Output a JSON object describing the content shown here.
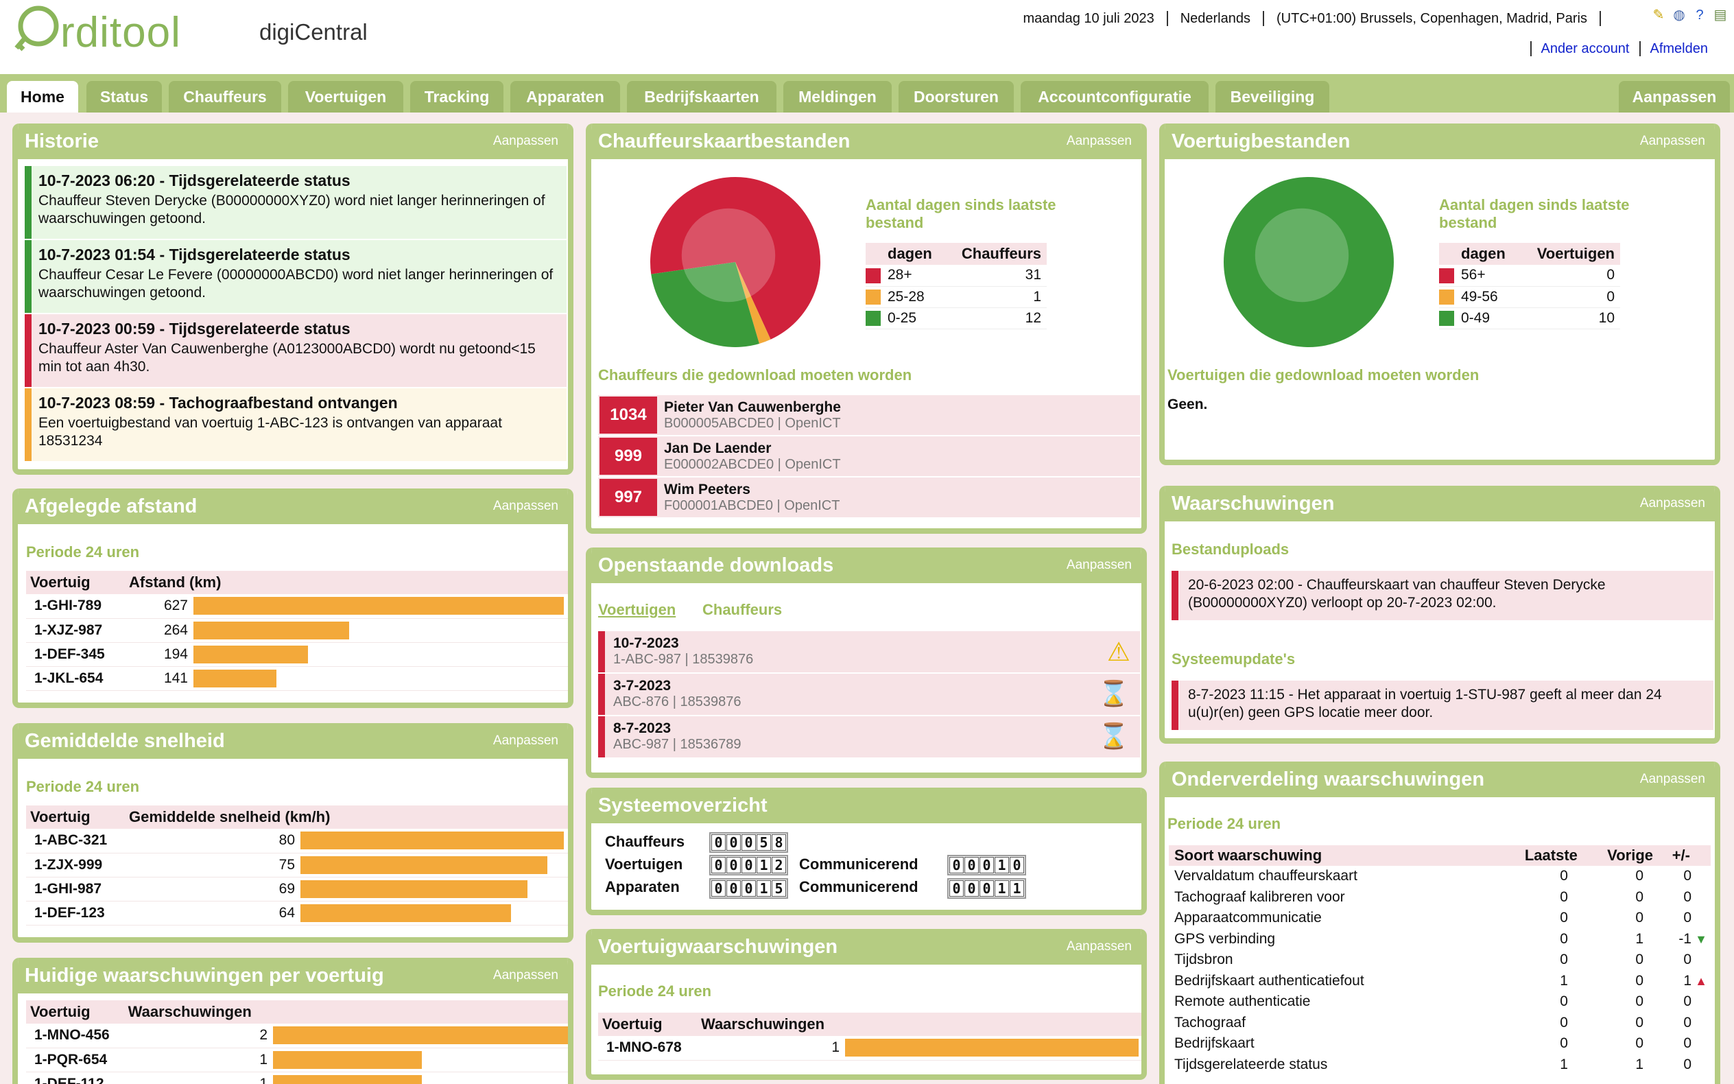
{
  "header": {
    "logo": "rditool",
    "app_name": "digiCentral",
    "date": "maandag 10 juli 2023",
    "language": "Nederlands",
    "timezone": "(UTC+01:00) Brussels, Copenhagen, Madrid, Paris",
    "links": {
      "other_account": "Ander account",
      "logout": "Afmelden"
    },
    "icons": [
      "help-balloon-icon",
      "globe-icon",
      "question-icon",
      "document-icon"
    ]
  },
  "tabs": [
    "Home",
    "Status",
    "Chauffeurs",
    "Voertuigen",
    "Tracking",
    "Apparaten",
    "Bedrijfskaarten",
    "Meldingen",
    "Doorsturen",
    "Accountconfiguratie",
    "Beveiliging"
  ],
  "tab_right": "Aanpassen",
  "adjust": "Aanpassen",
  "historie": {
    "title": "Historie",
    "items": [
      {
        "title": "10-7-2023 06:20 - Tijdsgerelateerde status",
        "text": "Chauffeur  Steven Derycke (B00000000XYZ0)  word niet langer herinneringen of waarschuwingen getoond.",
        "status": "green"
      },
      {
        "title": "10-7-2023 01:54 - Tijdsgerelateerde status",
        "text": "Chauffeur  Cesar Le Fevere (00000000ABCD0)        word niet langer herinneringen of waarschuwingen getoond.",
        "status": "green"
      },
      {
        "title": "10-7-2023 00:59 - Tijdsgerelateerde status",
        "text": "Chauffeur  Aster Van Cauwenberghe (A0123000ABCD0)   wordt nu getoond<15 min tot aan 4h30.",
        "status": "red"
      },
      {
        "title": "10-7-2023 08:59 - Tachograafbestand ontvangen",
        "text": "Een voertuigbestand van voertuig  1-ABC-123  is ontvangen van apparaat  18531234",
        "status": "yellow"
      }
    ]
  },
  "afstand": {
    "title": "Afgelegde afstand",
    "period": "Periode 24 uren",
    "col1": "Voertuig",
    "col2": "Afstand  (km)",
    "rows": [
      {
        "v": "1-GHI-789",
        "n": 627
      },
      {
        "v": "1-XJZ-987",
        "n": 264
      },
      {
        "v": "1-DEF-345",
        "n": 194
      },
      {
        "v": "1-JKL-654",
        "n": 141
      }
    ],
    "max": 627
  },
  "snelheid": {
    "title": "Gemiddelde snelheid",
    "period": "Periode 24 uren",
    "col1": "Voertuig",
    "col2": "Gemiddelde snelheid  (km/h)",
    "rows": [
      {
        "v": "1-ABC-321",
        "n": 80
      },
      {
        "v": "1-ZJX-999",
        "n": 75
      },
      {
        "v": "1-GHI-987",
        "n": 69
      },
      {
        "v": "1-DEF-123",
        "n": 64
      }
    ],
    "max": 80
  },
  "huidige": {
    "title": "Huidige waarschuwingen per voertuig",
    "col1": "Voertuig",
    "col2": "Waarschuwingen",
    "rows": [
      {
        "v": "1-MNO-456",
        "n": 2
      },
      {
        "v": "1-PQR-654",
        "n": 1
      },
      {
        "v": "1-DEF-112",
        "n": 1
      }
    ],
    "max": 2
  },
  "chauffeurskaart": {
    "title": "Chauffeurskaartbestanden",
    "legend_title": "Aantal dagen sinds laatste bestand",
    "col1": "dagen",
    "col2": "Chauffeurs",
    "rows": [
      {
        "label": "28+",
        "value": 31,
        "color": "#d0223c"
      },
      {
        "label": "25-28",
        "value": 1,
        "color": "#f3a93a"
      },
      {
        "label": "0-25",
        "value": 12,
        "color": "#3a9a3a"
      }
    ],
    "download_title": "Chauffeurs die gedownload moeten worden",
    "downloads": [
      {
        "num": "1034",
        "name": "Pieter Van Cauwenberghe",
        "card": "B000005ABCDE0",
        "src": "OpenICT"
      },
      {
        "num": "999",
        "name": "Jan De Laender",
        "card": "E000002ABCDE0",
        "src": "OpenICT"
      },
      {
        "num": "997",
        "name": "Wim Peeters",
        "card": "F000001ABCDE0",
        "src": "OpenICT"
      }
    ]
  },
  "openstaande": {
    "title": "Openstaande downloads",
    "tab1": "Voertuigen",
    "tab2": "Chauffeurs",
    "rows": [
      {
        "date": "10-7-2023",
        "veh": "1-ABC-987",
        "dev": "18539876",
        "icon": "warning-icon"
      },
      {
        "date": "3-7-2023",
        "veh": "ABC-876",
        "dev": "18539876",
        "icon": "hourglass-icon"
      },
      {
        "date": "8-7-2023",
        "veh": "ABC-987",
        "dev": "18536789",
        "icon": "hourglass-icon"
      }
    ]
  },
  "systeem": {
    "title": "Systeemoverzicht",
    "chauffeurs_label": "Chauffeurs",
    "chauffeurs": "00058",
    "voertuigen_label": "Voertuigen",
    "voertuigen": "00012",
    "apparaten_label": "Apparaten",
    "apparaten": "00015",
    "comm_label": "Communicerend",
    "comm_voertuigen": "00010",
    "comm_apparaten": "00011"
  },
  "voertuigwaarsch": {
    "title": "Voertuigwaarschuwingen",
    "period": "Periode 24 uren",
    "col1": "Voertuig",
    "col2": "Waarschuwingen",
    "rows": [
      {
        "v": "1-MNO-678",
        "n": 1
      }
    ],
    "max": 1
  },
  "voertuigbestanden": {
    "title": "Voertuigbestanden",
    "legend_title": "Aantal dagen sinds laatste bestand",
    "col1": "dagen",
    "col2": "Voertuigen",
    "rows": [
      {
        "label": "56+",
        "value": 0,
        "color": "#d0223c"
      },
      {
        "label": "49-56",
        "value": 0,
        "color": "#f3a93a"
      },
      {
        "label": "0-49",
        "value": 10,
        "color": "#3a9a3a"
      }
    ],
    "download_title": "Voertuigen die gedownload moeten worden",
    "none": "Geen."
  },
  "waarschuwingen": {
    "title": "Waarschuwingen",
    "uploads_title": "Bestanduploads",
    "upload_text": "20-6-2023 02:00 - Chauffeurskaart van chauffeur  Steven Derycke (B00000000XYZ0)     verloopt op 20-7-2023 02:00.",
    "updates_title": "Systeemupdate's",
    "update_text": "8-7-2023 11:15 - Het apparaat in voertuig  1-STU-987    geeft al meer dan 24 u(u)r(en) geen GPS locatie meer door."
  },
  "onderverdeling": {
    "title": "Onderverdeling waarschuwingen",
    "period": "Periode 24 uren",
    "cols": [
      "Soort waarschuwing",
      "Laatste",
      "Vorige",
      "+/-"
    ],
    "rows": [
      {
        "name": "Vervaldatum chauffeurskaart",
        "l": "0",
        "v": "0",
        "d": "0",
        "trend": ""
      },
      {
        "name": "Tachograaf kalibreren voor",
        "l": "0",
        "v": "0",
        "d": "0",
        "trend": ""
      },
      {
        "name": "Apparaatcommunicatie",
        "l": "0",
        "v": "0",
        "d": "0",
        "trend": ""
      },
      {
        "name": "GPS verbinding",
        "l": "0",
        "v": "1",
        "d": "-1",
        "trend": "down"
      },
      {
        "name": "Tijdsbron",
        "l": "0",
        "v": "0",
        "d": "0",
        "trend": ""
      },
      {
        "name": "Bedrijfskaart authenticatiefout",
        "l": "1",
        "v": "0",
        "d": "1",
        "trend": "up"
      },
      {
        "name": "Remote authenticatie",
        "l": "0",
        "v": "0",
        "d": "0",
        "trend": ""
      },
      {
        "name": "Tachograaf",
        "l": "0",
        "v": "0",
        "d": "0",
        "trend": ""
      },
      {
        "name": "Bedrijfskaart",
        "l": "0",
        "v": "0",
        "d": "0",
        "trend": ""
      },
      {
        "name": "Tijdsgerelateerde status",
        "l": "1",
        "v": "1",
        "d": "0",
        "trend": ""
      }
    ]
  }
}
